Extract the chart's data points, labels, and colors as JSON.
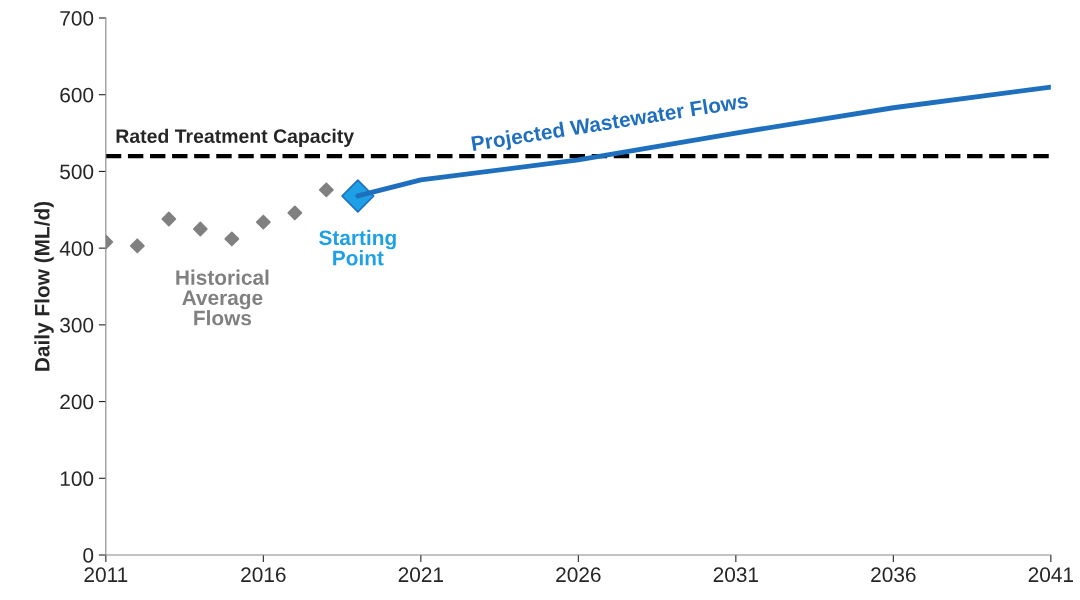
{
  "chart_data": {
    "type": "line",
    "ylabel": "Daily Flow (ML/d)",
    "xlim": [
      2011,
      2041
    ],
    "xticks": [
      2011,
      2016,
      2021,
      2026,
      2031,
      2036,
      2041
    ],
    "ylim": [
      0,
      700
    ],
    "yticks": [
      0,
      100,
      200,
      300,
      400,
      500,
      600,
      700
    ],
    "grid": false,
    "legend": false,
    "series": [
      {
        "name": "Historical Average Flows",
        "type": "scatter",
        "marker": "diamond",
        "color": "#808080",
        "x": [
          2011,
          2012,
          2013,
          2014,
          2015,
          2016,
          2017,
          2018
        ],
        "values": [
          408,
          403,
          438,
          425,
          412,
          434,
          446,
          476
        ]
      },
      {
        "name": "Projected Wastewater Flows",
        "marker": "none",
        "line_style": "solid",
        "color": "#1f6fbf",
        "x": [
          2019,
          2021,
          2026,
          2031,
          2036,
          2041
        ],
        "values": [
          468,
          489,
          515,
          550,
          583,
          610
        ]
      },
      {
        "name": "Starting Point",
        "type": "scatter",
        "marker": "diamond",
        "color": "#1ea0e6",
        "x": [
          2019
        ],
        "values": [
          468
        ]
      }
    ],
    "ref_lines": [
      {
        "axis": "y",
        "value": 520,
        "label": "Rated Treatment Capacity",
        "color": "#000000",
        "line_style": "dashed"
      }
    ]
  }
}
